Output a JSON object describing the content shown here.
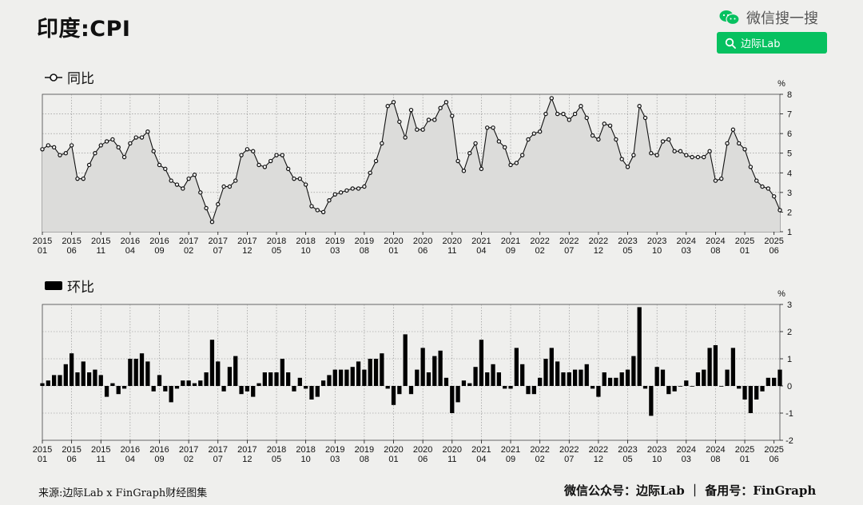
{
  "header": {
    "title": "印度:CPI"
  },
  "wechat": {
    "brand_label": "微信搜一搜",
    "search_text": "边际Lab"
  },
  "footer": {
    "source": "来源:边际Lab x FinGraph财经图集",
    "account": "微信公众号：边际Lab ｜ 备用号：FinGraph"
  },
  "chart_data": [
    {
      "type": "line",
      "legend": "同比",
      "unit": "%",
      "ylim": [
        1,
        8
      ],
      "yticks": [
        1,
        2,
        3,
        4,
        5,
        6,
        7,
        8
      ],
      "x_start": "2015-01",
      "x_end": "2025-06",
      "x_tick_labels": [
        [
          "2015",
          "01"
        ],
        [
          "2015",
          "06"
        ],
        [
          "2015",
          "11"
        ],
        [
          "2016",
          "04"
        ],
        [
          "2016",
          "09"
        ],
        [
          "2017",
          "02"
        ],
        [
          "2017",
          "07"
        ],
        [
          "2017",
          "12"
        ],
        [
          "2018",
          "05"
        ],
        [
          "2018",
          "10"
        ],
        [
          "2019",
          "03"
        ],
        [
          "2019",
          "08"
        ],
        [
          "2020",
          "01"
        ],
        [
          "2020",
          "06"
        ],
        [
          "2020",
          "11"
        ],
        [
          "2021",
          "04"
        ],
        [
          "2021",
          "09"
        ],
        [
          "2022",
          "02"
        ],
        [
          "2022",
          "07"
        ],
        [
          "2022",
          "12"
        ],
        [
          "2023",
          "05"
        ],
        [
          "2023",
          "10"
        ],
        [
          "2024",
          "03"
        ],
        [
          "2024",
          "08"
        ],
        [
          "2025",
          "01"
        ],
        [
          "2025",
          "06"
        ]
      ],
      "values": [
        5.2,
        5.4,
        5.3,
        4.9,
        5.0,
        5.4,
        3.7,
        3.7,
        4.4,
        5.0,
        5.4,
        5.6,
        5.7,
        5.3,
        4.8,
        5.5,
        5.8,
        5.8,
        6.1,
        5.1,
        4.4,
        4.2,
        3.6,
        3.4,
        3.2,
        3.7,
        3.9,
        3.0,
        2.2,
        1.5,
        2.4,
        3.3,
        3.3,
        3.6,
        4.9,
        5.2,
        5.1,
        4.4,
        4.3,
        4.6,
        4.9,
        4.9,
        4.2,
        3.7,
        3.7,
        3.4,
        2.3,
        2.1,
        2.0,
        2.6,
        2.9,
        3.0,
        3.1,
        3.2,
        3.2,
        3.3,
        4.0,
        4.6,
        5.5,
        7.4,
        7.6,
        6.6,
        5.8,
        7.2,
        6.2,
        6.2,
        6.7,
        6.7,
        7.3,
        7.6,
        6.9,
        4.6,
        4.1,
        5.0,
        5.5,
        4.2,
        6.3,
        6.3,
        5.6,
        5.3,
        4.4,
        4.5,
        4.9,
        5.7,
        6.0,
        6.1,
        7.0,
        7.8,
        7.0,
        7.0,
        6.7,
        7.0,
        7.4,
        6.8,
        5.9,
        5.7,
        6.5,
        6.4,
        5.7,
        4.7,
        4.3,
        4.9,
        7.4,
        6.8,
        5.0,
        4.9,
        5.6,
        5.7,
        5.1,
        5.1,
        4.9,
        4.8,
        4.8,
        4.8,
        5.1,
        3.6,
        3.7,
        5.5,
        6.2,
        5.5,
        5.2,
        4.3,
        3.6,
        3.3,
        3.2,
        2.8,
        2.1
      ]
    },
    {
      "type": "bar",
      "legend": "环比",
      "unit": "%",
      "ylim": [
        -2,
        3
      ],
      "yticks": [
        -2,
        -1,
        0,
        1,
        2,
        3
      ],
      "x_start": "2015-01",
      "x_end": "2025-06",
      "x_tick_labels": [
        [
          "2015",
          "01"
        ],
        [
          "2015",
          "06"
        ],
        [
          "2015",
          "11"
        ],
        [
          "2016",
          "04"
        ],
        [
          "2016",
          "09"
        ],
        [
          "2017",
          "02"
        ],
        [
          "2017",
          "07"
        ],
        [
          "2017",
          "12"
        ],
        [
          "2018",
          "05"
        ],
        [
          "2018",
          "10"
        ],
        [
          "2019",
          "03"
        ],
        [
          "2019",
          "08"
        ],
        [
          "2020",
          "01"
        ],
        [
          "2020",
          "06"
        ],
        [
          "2020",
          "11"
        ],
        [
          "2021",
          "04"
        ],
        [
          "2021",
          "09"
        ],
        [
          "2022",
          "02"
        ],
        [
          "2022",
          "07"
        ],
        [
          "2022",
          "12"
        ],
        [
          "2023",
          "05"
        ],
        [
          "2023",
          "10"
        ],
        [
          "2024",
          "03"
        ],
        [
          "2024",
          "08"
        ],
        [
          "2025",
          "01"
        ],
        [
          "2025",
          "06"
        ]
      ],
      "values": [
        0.1,
        0.2,
        0.4,
        0.4,
        0.8,
        1.2,
        0.5,
        0.9,
        0.5,
        0.6,
        0.4,
        -0.4,
        0.1,
        -0.3,
        -0.1,
        1.0,
        1.0,
        1.2,
        0.9,
        -0.2,
        0.4,
        -0.2,
        -0.6,
        -0.1,
        0.2,
        0.2,
        0.1,
        0.2,
        0.5,
        1.7,
        0.9,
        -0.2,
        0.7,
        1.1,
        -0.3,
        -0.2,
        -0.4,
        0.1,
        0.5,
        0.5,
        0.5,
        1.0,
        0.5,
        -0.2,
        0.3,
        -0.1,
        -0.5,
        -0.4,
        0.2,
        0.4,
        0.6,
        0.6,
        0.6,
        0.7,
        0.9,
        0.6,
        1.0,
        1.0,
        1.2,
        -0.1,
        -0.7,
        -0.3,
        1.9,
        -0.3,
        0.6,
        1.4,
        0.5,
        1.1,
        1.3,
        0.3,
        -1.0,
        -0.6,
        0.2,
        0.1,
        0.7,
        1.7,
        0.5,
        0.8,
        0.5,
        -0.1,
        -0.1,
        1.4,
        0.8,
        -0.3,
        -0.3,
        0.3,
        1.0,
        1.4,
        0.9,
        0.5,
        0.5,
        0.6,
        0.6,
        0.8,
        -0.1,
        -0.4,
        0.5,
        0.3,
        0.3,
        0.5,
        0.6,
        1.1,
        2.9,
        -0.1,
        -1.1,
        0.7,
        0.6,
        -0.3,
        -0.2,
        0.0,
        0.2,
        0.0,
        0.5,
        0.6,
        1.4,
        1.5,
        0.0,
        0.6,
        1.4,
        -0.1,
        -0.5,
        -1.0,
        -0.5,
        -0.2,
        0.3,
        0.3,
        0.6
      ]
    }
  ]
}
